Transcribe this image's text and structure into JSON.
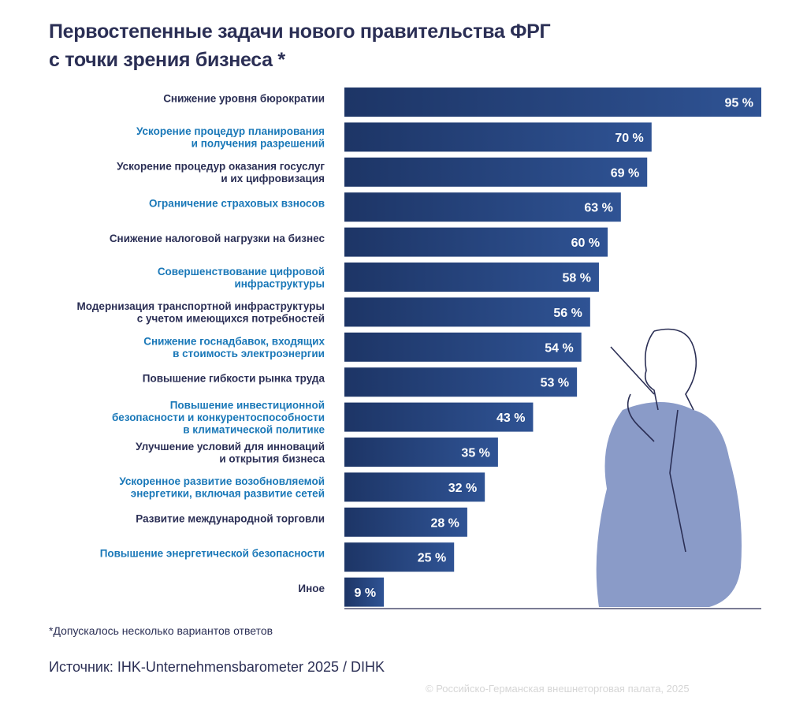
{
  "title_line1": "Первостепенные задачи нового правительства ФРГ",
  "title_line2": "с точки зрения бизнеса *",
  "note": "*Допускалось несколько вариантов ответов",
  "source": "Источник: IHK-Unternehmensbarometer 2025 / DIHK",
  "copyright": "© Российско-Германская внешнеторговая палата, 2025",
  "colors": {
    "bar_dark": "#1d3566",
    "bar_light": "#2f5394",
    "label_dark": "#2b2f55",
    "label_blue": "#1a78b8",
    "figure": "#7d90c2"
  },
  "chart_data": {
    "type": "bar",
    "orientation": "horizontal",
    "unit": "%",
    "xlim": [
      0,
      95
    ],
    "categories": [
      [
        "Снижение уровня бюрократии"
      ],
      [
        "Ускорение процедур планирования",
        "и получения разрешений"
      ],
      [
        "Ускорение процедур оказания госуслуг",
        "и их цифровизация"
      ],
      [
        "Ограничение страховых взносов"
      ],
      [
        "Снижение налоговой нагрузки на бизнес"
      ],
      [
        "Совершенствование цифровой",
        "инфраструктуры"
      ],
      [
        "Модернизация транспортной инфраструктуры",
        "с учетом имеющихся потребностей"
      ],
      [
        "Снижение госнадбавок, входящих",
        "в стоимость электроэнергии"
      ],
      [
        "Повышение гибкости рынка труда"
      ],
      [
        "Повышение инвестиционной",
        "безопасности и конкурентоспособности",
        "в климатической политике"
      ],
      [
        "Улучшение условий для инноваций",
        "и открытия бизнеса"
      ],
      [
        "Ускоренное развитие возобновляемой",
        "энергетики, включая развитие сетей"
      ],
      [
        "Развитие международной торговли"
      ],
      [
        "Повышение энергетической безопасности"
      ],
      [
        "Иное"
      ]
    ],
    "values": [
      95,
      70,
      69,
      63,
      60,
      58,
      56,
      54,
      53,
      43,
      35,
      32,
      28,
      25,
      9
    ],
    "data_labels": [
      "95 %",
      "70 %",
      "69 %",
      "63 %",
      "60 %",
      "58 %",
      "56 %",
      "54 %",
      "53 %",
      "43 %",
      "35 %",
      "32 %",
      "28 %",
      "25 %",
      "9 %"
    ]
  }
}
